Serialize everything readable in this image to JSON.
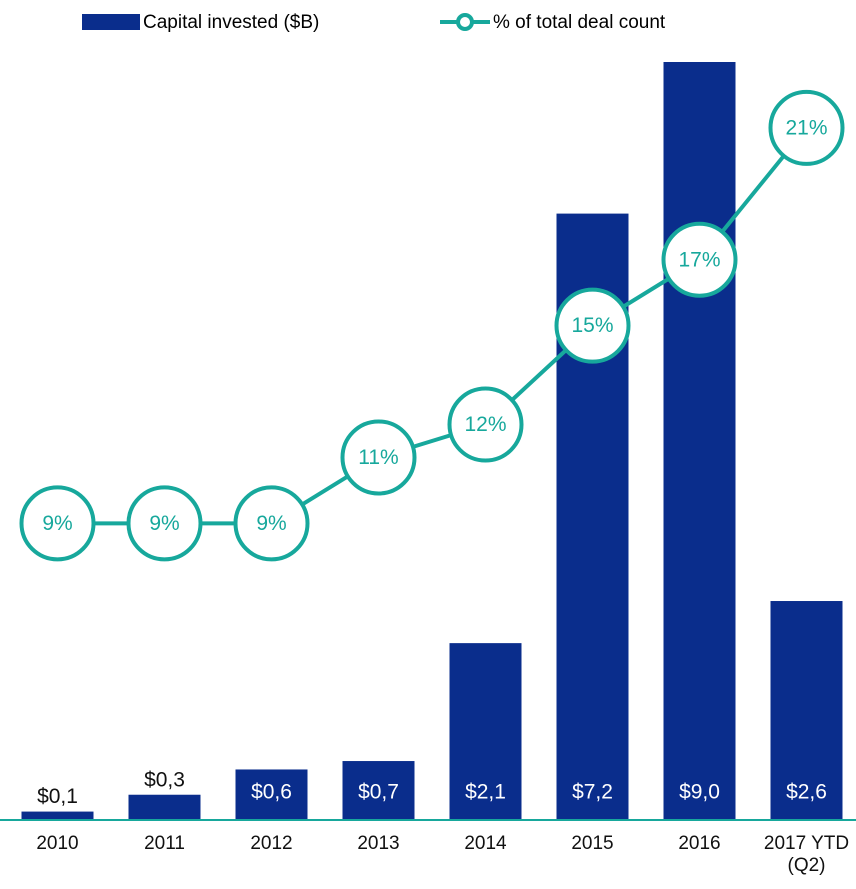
{
  "chart_data": {
    "type": "bar",
    "categories": [
      "2010",
      "2011",
      "2012",
      "2013",
      "2014",
      "2015",
      "2016",
      "2017 YTD (Q2)"
    ],
    "series": [
      {
        "name": "Capital invested ($B)",
        "color": "#0a2d8c",
        "values": [
          0.1,
          0.3,
          0.6,
          0.7,
          2.1,
          7.2,
          9.0,
          2.6
        ],
        "value_labels": [
          "$0,1",
          "$0,3",
          "$0,6",
          "$0,7",
          "$2,1",
          "$7,2",
          "$9,0",
          "$2,6"
        ]
      },
      {
        "name": "% of total deal count",
        "type": "line",
        "axis": "y2",
        "color": "#17a89c",
        "values": [
          9,
          9,
          9,
          11,
          12,
          15,
          17,
          21
        ],
        "value_labels": [
          "9%",
          "9%",
          "9%",
          "11%",
          "12%",
          "15%",
          "17%",
          "21%"
        ]
      }
    ],
    "ylim": [
      0,
      9
    ],
    "y2lim": [
      0,
      23
    ],
    "legend": "top"
  }
}
